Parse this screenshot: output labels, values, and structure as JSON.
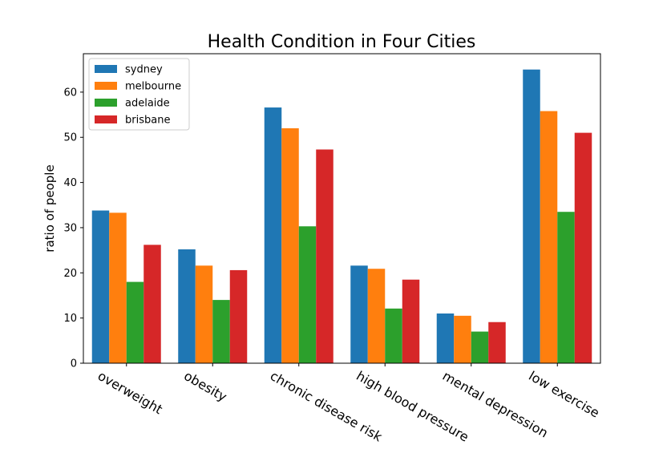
{
  "chart_data": {
    "type": "bar",
    "title": "Health Condition in Four Cities",
    "xlabel": "",
    "ylabel": "ratio of people",
    "categories": [
      "overweight",
      "obesity",
      "chronic disease risk",
      "high blood pressure",
      "mental depression",
      "low exercise"
    ],
    "ylim": [
      0,
      68.5
    ],
    "yticks": [
      "0",
      "10",
      "20",
      "30",
      "40",
      "50",
      "60"
    ],
    "legend_position": "top-left",
    "grid": false,
    "series": [
      {
        "name": "sydney",
        "color": "#1f77b4",
        "values": [
          33.8,
          25.2,
          56.6,
          21.6,
          11.0,
          65.0
        ]
      },
      {
        "name": "melbourne",
        "color": "#ff7f0e",
        "values": [
          33.3,
          21.6,
          52.0,
          20.9,
          10.5,
          55.8
        ]
      },
      {
        "name": "adelaide",
        "color": "#2ca02c",
        "values": [
          18.0,
          14.0,
          30.3,
          12.1,
          7.0,
          33.5
        ]
      },
      {
        "name": "brisbane",
        "color": "#d62728",
        "values": [
          26.2,
          20.6,
          47.3,
          18.5,
          9.1,
          51.0
        ]
      }
    ]
  }
}
